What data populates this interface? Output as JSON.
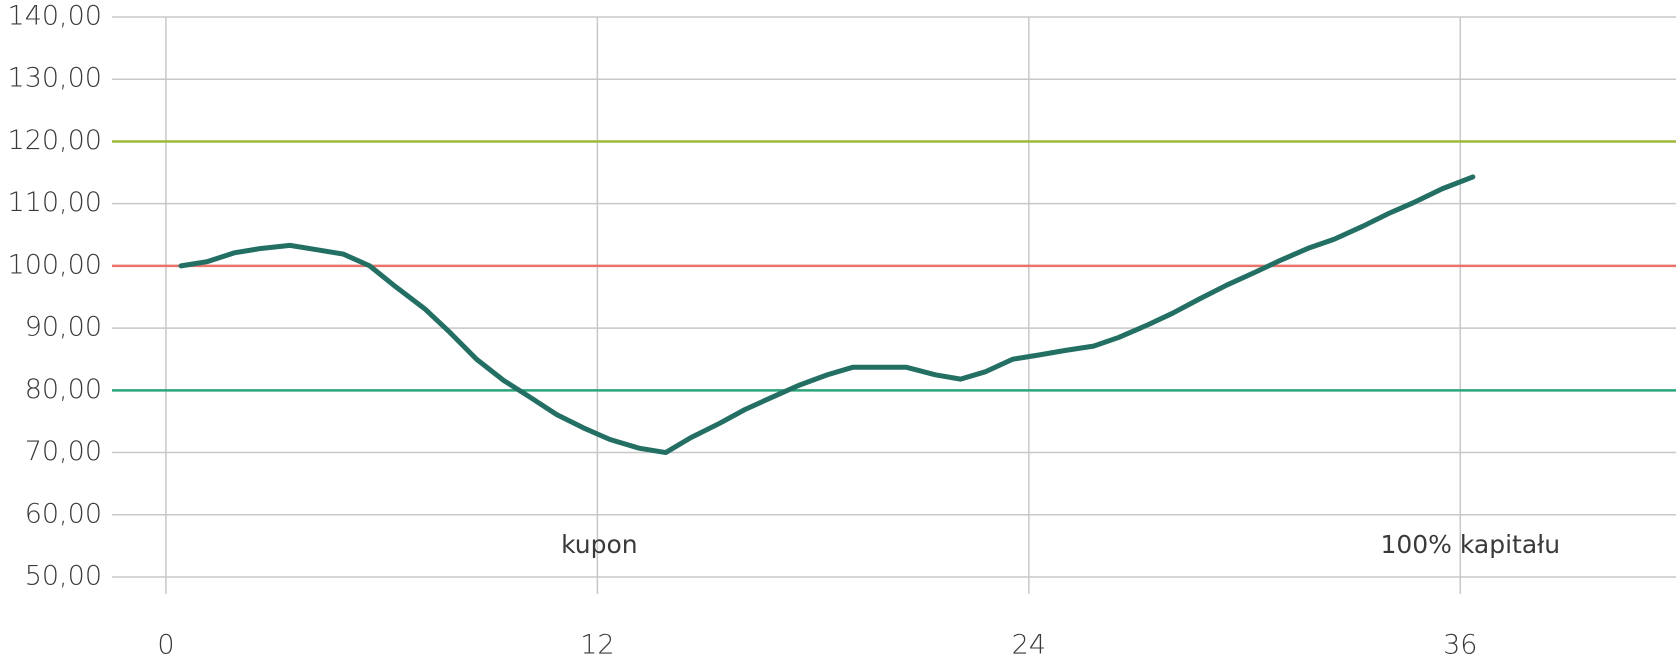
{
  "chart_data": {
    "type": "line",
    "x": [
      0.42,
      1.16,
      1.9,
      2.64,
      3.45,
      4.19,
      4.93,
      5.67,
      6.4,
      7.2,
      7.9,
      8.64,
      9.39,
      10.1,
      10.87,
      11.6,
      12.35,
      13.16,
      13.9,
      14.6,
      15.4,
      16.1,
      16.9,
      17.6,
      18.4,
      19.1,
      19.8,
      20.6,
      21.4,
      22.1,
      22.8,
      23.55,
      24.3,
      25.0,
      25.8,
      26.5,
      27.3,
      28.0,
      28.75,
      29.5,
      30.3,
      31.0,
      31.8,
      32.5,
      33.3,
      34.0,
      34.75,
      35.5,
      36.35
    ],
    "series": [
      {
        "color": "#236f63",
        "values": [
          100,
          100.7,
          102.1,
          102.8,
          103.3,
          102.6,
          101.9,
          100,
          96.6,
          93.1,
          89.3,
          85,
          81.6,
          79,
          76.1,
          74,
          72.1,
          70.7,
          70,
          72.4,
          74.7,
          76.9,
          79,
          80.8,
          82.5,
          83.7,
          83.7,
          83.7,
          82.5,
          81.8,
          83,
          85,
          85.7,
          86.4,
          87.1,
          88.5,
          90.5,
          92.4,
          94.7,
          96.9,
          99,
          100.9,
          102.9,
          104.3,
          106.4,
          108.4,
          110.3,
          112.4,
          114.3
        ]
      }
    ],
    "reference_lines": [
      {
        "value": 120,
        "color": "#9db83a"
      },
      {
        "value": 100,
        "color": "#e8756c"
      },
      {
        "value": 80,
        "color": "#2ba57b"
      }
    ],
    "annotations": [
      "kupon",
      "100% kapitału"
    ],
    "xlim": [
      -1.5,
      42
    ],
    "xticks": [
      0,
      12,
      24,
      36
    ],
    "ylim": [
      50,
      140
    ],
    "yticks": [
      {
        "value": 50,
        "label": "50,00"
      },
      {
        "value": 60,
        "label": "60,00"
      },
      {
        "value": 70,
        "label": "70,00"
      },
      {
        "value": 80,
        "label": "80,00"
      },
      {
        "value": 90,
        "label": "90,00"
      },
      {
        "value": 100,
        "label": "100,00"
      },
      {
        "value": 110,
        "label": "110,00"
      },
      {
        "value": 120,
        "label": "120,00"
      },
      {
        "value": 130,
        "label": "130,00"
      },
      {
        "value": 140,
        "label": "140,00"
      }
    ],
    "grid": true
  }
}
